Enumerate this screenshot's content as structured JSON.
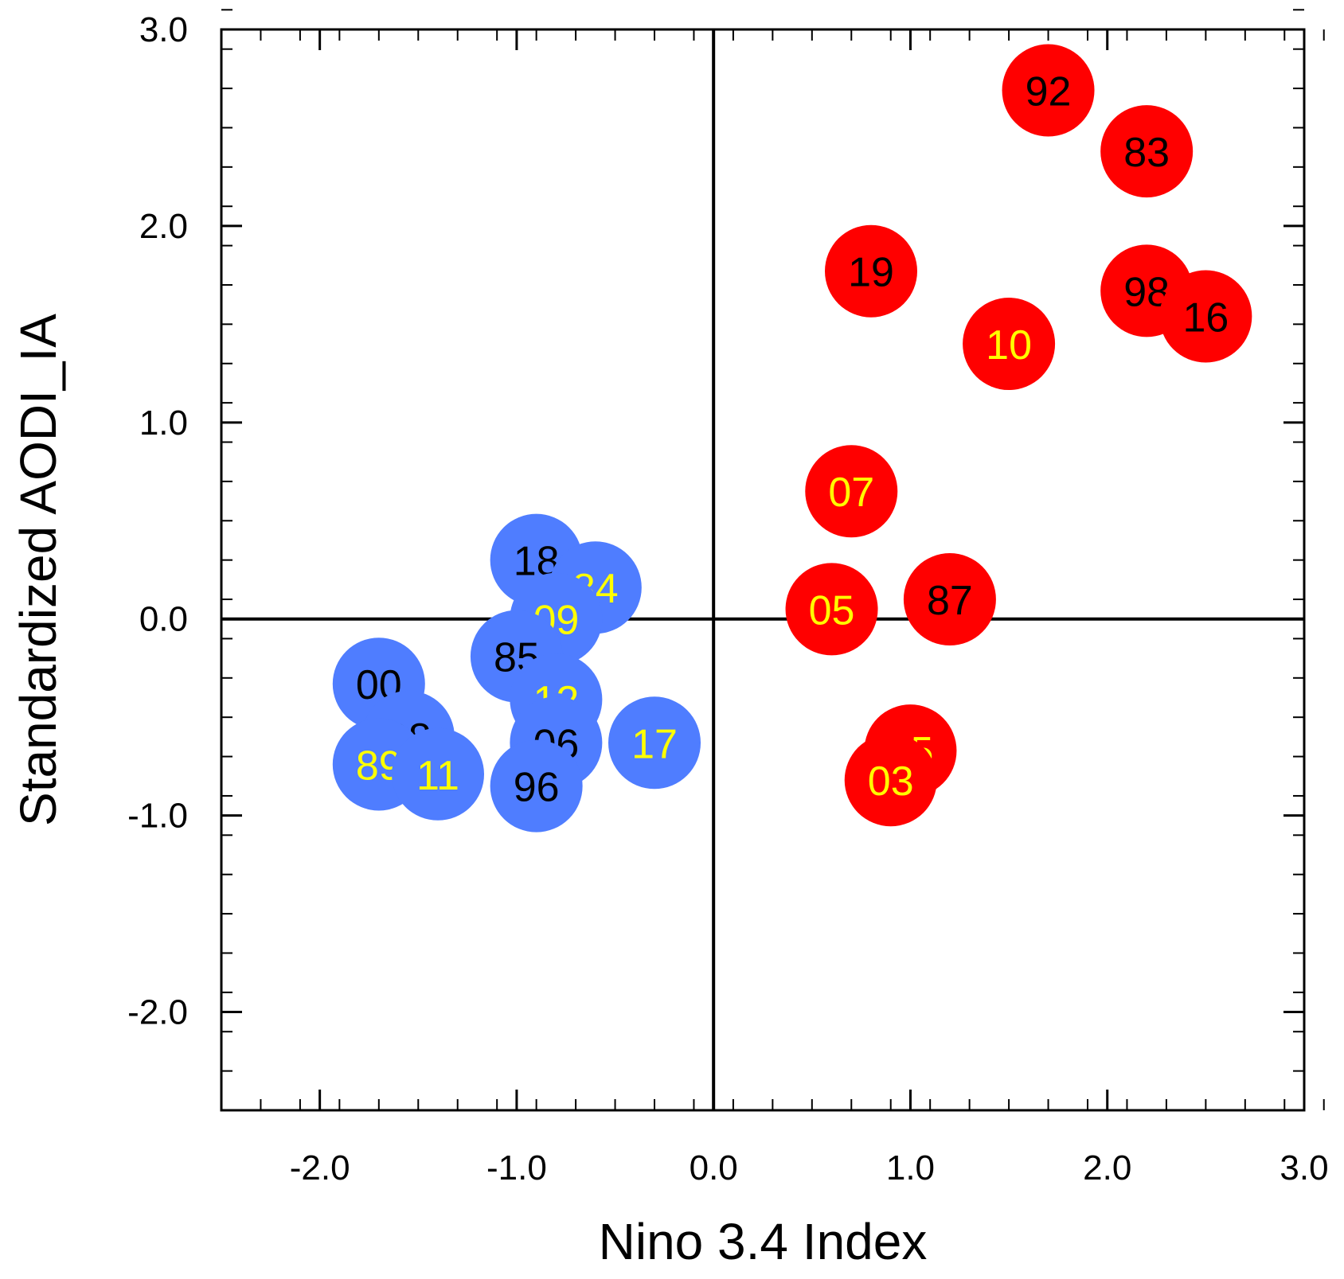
{
  "chart_data": {
    "type": "scatter",
    "xlabel": "Nino 3.4 Index",
    "ylabel": "Standardized AODI_IA",
    "xlim": [
      -2.5,
      3.0
    ],
    "ylim": [
      -2.5,
      3.0
    ],
    "x_ticks": [
      "-2.0",
      "-1.0",
      "0.0",
      "1.0",
      "2.0",
      "3.0"
    ],
    "y_ticks": [
      "-2.0",
      "-1.0",
      "0.0",
      "1.0",
      "2.0",
      "3.0"
    ],
    "x_tick_values": [
      -2.0,
      -1.0,
      0.0,
      1.0,
      2.0,
      3.0
    ],
    "y_tick_values": [
      -2.0,
      -1.0,
      0.0,
      1.0,
      2.0,
      3.0
    ],
    "grid": false,
    "zero_lines": true,
    "colors": {
      "la_nina_marker": "#4f7dff",
      "el_nino_marker": "#ff0000",
      "label_black": "#000000",
      "label_yellow": "#ffff00"
    },
    "series": [
      {
        "marker_color": "#4f7dff",
        "points": [
          {
            "label": "18",
            "x": -0.9,
            "y": 0.3,
            "label_color": "#000000"
          },
          {
            "label": "84",
            "x": -0.6,
            "y": 0.16,
            "label_color": "#ffff00"
          },
          {
            "label": "09",
            "x": -0.8,
            "y": 0.0,
            "label_color": "#ffff00"
          },
          {
            "label": "85",
            "x": -1.0,
            "y": -0.19,
            "label_color": "#000000"
          },
          {
            "label": "00",
            "x": -1.7,
            "y": -0.33,
            "label_color": "#000000"
          },
          {
            "label": "12",
            "x": -0.8,
            "y": -0.41,
            "label_color": "#ffff00"
          },
          {
            "label": "08",
            "x": -1.55,
            "y": -0.6,
            "label_color": "#000000"
          },
          {
            "label": "06",
            "x": -0.8,
            "y": -0.63,
            "label_color": "#000000"
          },
          {
            "label": "17",
            "x": -0.3,
            "y": -0.63,
            "label_color": "#ffff00"
          },
          {
            "label": "89",
            "x": -1.7,
            "y": -0.74,
            "label_color": "#ffff00"
          },
          {
            "label": "11",
            "x": -1.4,
            "y": -0.79,
            "label_color": "#ffff00"
          },
          {
            "label": "96",
            "x": -0.9,
            "y": -0.85,
            "label_color": "#000000"
          }
        ]
      },
      {
        "marker_color": "#ff0000",
        "points": [
          {
            "label": "92",
            "x": 1.7,
            "y": 2.69,
            "label_color": "#000000"
          },
          {
            "label": "83",
            "x": 2.2,
            "y": 2.38,
            "label_color": "#000000"
          },
          {
            "label": "19",
            "x": 0.8,
            "y": 1.77,
            "label_color": "#000000"
          },
          {
            "label": "98",
            "x": 2.2,
            "y": 1.67,
            "label_color": "#000000"
          },
          {
            "label": "16",
            "x": 2.5,
            "y": 1.54,
            "label_color": "#000000"
          },
          {
            "label": "10",
            "x": 1.5,
            "y": 1.4,
            "label_color": "#ffff00"
          },
          {
            "label": "07",
            "x": 0.7,
            "y": 0.65,
            "label_color": "#ffff00"
          },
          {
            "label": "87",
            "x": 1.2,
            "y": 0.1,
            "label_color": "#000000"
          },
          {
            "label": "05",
            "x": 0.6,
            "y": 0.05,
            "label_color": "#ffff00"
          },
          {
            "label": "95",
            "x": 1.0,
            "y": -0.67,
            "label_color": "#ffff00"
          },
          {
            "label": "03",
            "x": 0.9,
            "y": -0.82,
            "label_color": "#ffff00"
          }
        ]
      }
    ]
  }
}
